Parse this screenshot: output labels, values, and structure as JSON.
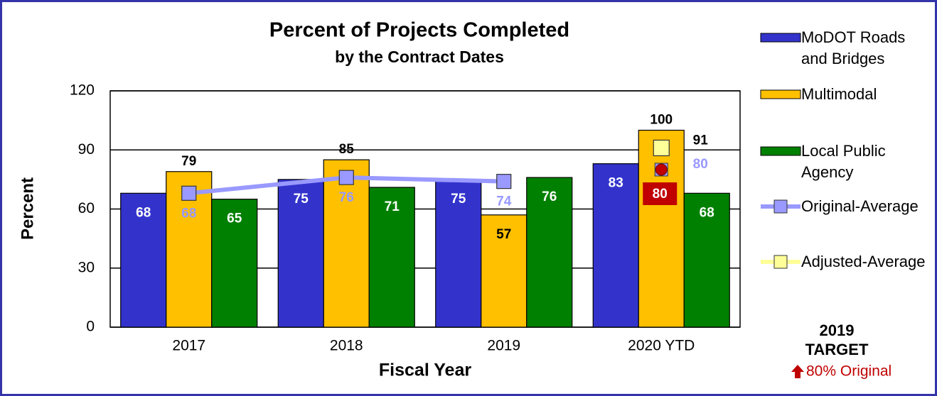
{
  "chart_data": {
    "type": "bar",
    "title": "Percent of Projects Completed",
    "subtitle": "by the Contract Dates",
    "x_label": "Fiscal Year",
    "y_label": "Percent",
    "categories": [
      "2017",
      "2018",
      "2019",
      "2020 YTD"
    ],
    "series": [
      {
        "name": "MoDOT Roads and Bridges",
        "color": "#3333cc",
        "values": [
          68,
          75,
          75,
          83
        ]
      },
      {
        "name": "Multimodal",
        "color": "#ffc000",
        "values": [
          79,
          85,
          57,
          100
        ]
      },
      {
        "name": "Local Public Agency",
        "color": "#008000",
        "values": [
          65,
          71,
          76,
          68
        ]
      },
      {
        "name": "Original-Average",
        "type": "line",
        "color": "#9999ff",
        "values": [
          68,
          76,
          74,
          null
        ]
      },
      {
        "name": "Adjusted-Average",
        "type": "line",
        "color": "#ffff99",
        "values": [
          null,
          null,
          null,
          91
        ]
      }
    ],
    "target_points": {
      "values": [
        null,
        null,
        null,
        80
      ],
      "color": "#c00000"
    },
    "ylim": [
      0,
      120
    ],
    "yticks": [
      0,
      30,
      60,
      90,
      120
    ],
    "grid": true,
    "legend": "right",
    "annotation": {
      "year": "2019",
      "label": "TARGET",
      "text": "80% Original"
    }
  }
}
